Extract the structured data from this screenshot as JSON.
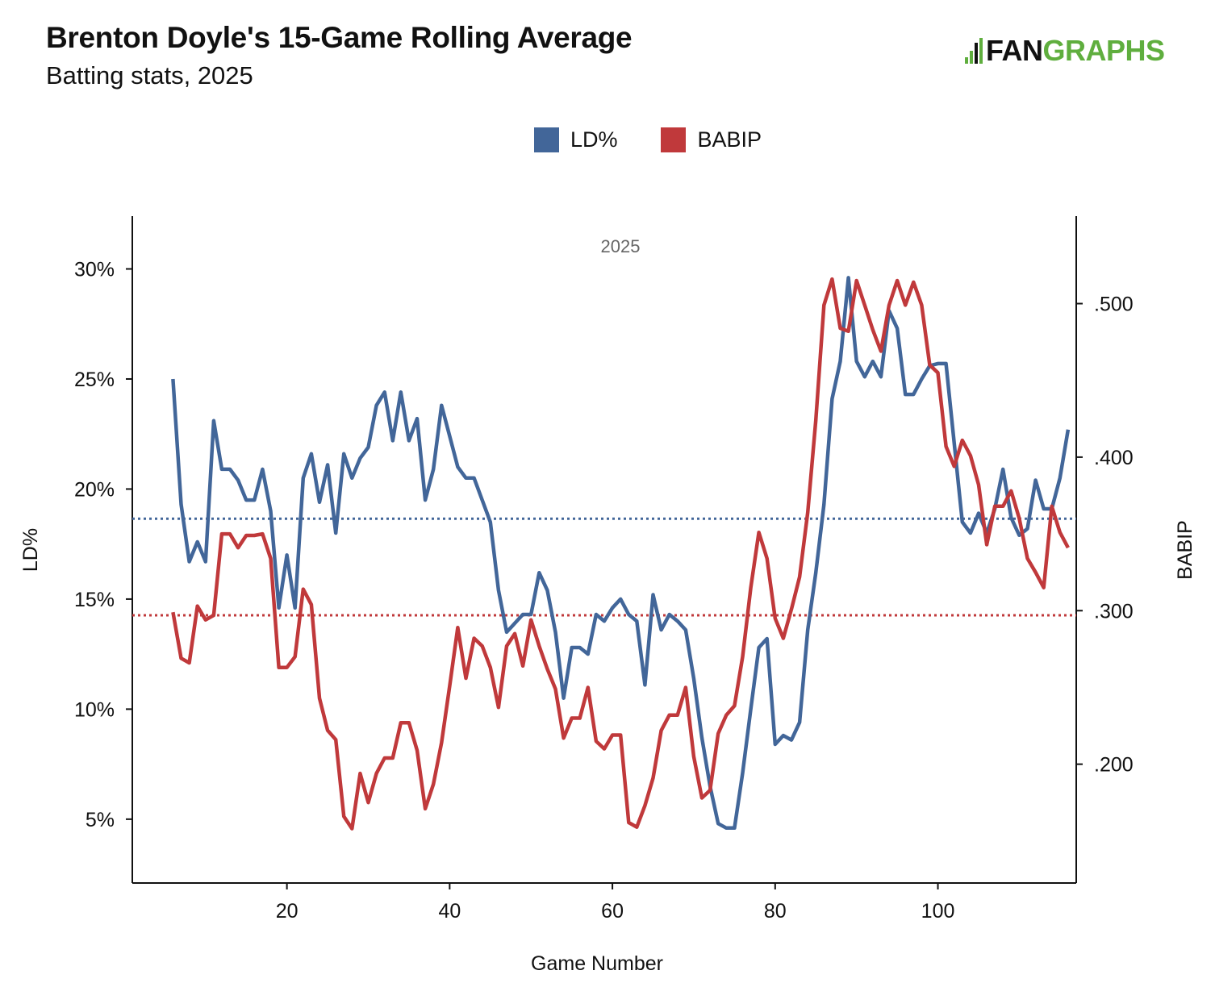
{
  "title": "Brenton Doyle's 15-Game Rolling Average",
  "subtitle": "Batting stats, 2025",
  "logo": {
    "part1": "FAN",
    "part2": "GRAPHS",
    "brand_color": "#5fae3e"
  },
  "chart_data": {
    "type": "line",
    "title": "Brenton Doyle's 15-Game Rolling Average",
    "subtitle": "Batting stats, 2025",
    "panel_label": "2025",
    "xlabel": "Game Number",
    "ylabel_left": "LD%",
    "ylabel_right": "BABIP",
    "xlim": [
      1,
      117
    ],
    "ylim_left": [
      2.1,
      32.4
    ],
    "ylim_right": [
      0.1226,
      0.557
    ],
    "x_ticks": [
      20,
      40,
      60,
      80,
      100
    ],
    "y_ticks_left": [
      {
        "v": 5,
        "label": "5%"
      },
      {
        "v": 10,
        "label": "10%"
      },
      {
        "v": 15,
        "label": "15%"
      },
      {
        "v": 20,
        "label": "20%"
      },
      {
        "v": 25,
        "label": "25%"
      },
      {
        "v": 30,
        "label": "30%"
      }
    ],
    "y_ticks_right": [
      {
        "v": 0.2,
        "label": ".200"
      },
      {
        "v": 0.3,
        "label": ".300"
      },
      {
        "v": 0.4,
        "label": ".400"
      },
      {
        "v": 0.5,
        "label": ".500"
      }
    ],
    "grid": false,
    "legend_position": "top",
    "x_start": 6,
    "series": [
      {
        "name": "LD%",
        "axis": "left",
        "color": "#426699",
        "reference_line": 18.65,
        "values": [
          25.0,
          19.3,
          16.7,
          17.6,
          16.7,
          23.1,
          20.9,
          20.9,
          20.4,
          19.5,
          19.5,
          20.9,
          19.0,
          14.6,
          17.0,
          14.6,
          20.5,
          21.6,
          19.4,
          21.1,
          18.0,
          21.6,
          20.5,
          21.4,
          21.9,
          23.8,
          24.4,
          22.2,
          24.4,
          22.2,
          23.2,
          19.5,
          20.9,
          23.8,
          22.4,
          21.0,
          20.5,
          20.5,
          19.5,
          18.5,
          15.4,
          13.5,
          13.9,
          14.3,
          14.3,
          16.2,
          15.4,
          13.5,
          10.5,
          12.8,
          12.8,
          12.5,
          14.3,
          14.0,
          14.6,
          15.0,
          14.3,
          14.0,
          11.1,
          15.2,
          13.6,
          14.3,
          14.0,
          13.6,
          11.4,
          8.7,
          6.5,
          4.8,
          4.6,
          4.6,
          7.1,
          10.0,
          12.8,
          13.2,
          8.4,
          8.8,
          8.6,
          9.4,
          13.6,
          16.2,
          19.3,
          24.1,
          25.8,
          29.6,
          25.8,
          25.1,
          25.8,
          25.1,
          28.1,
          27.3,
          24.3,
          24.3,
          25.0,
          25.6,
          25.7,
          25.7,
          22.1,
          18.5,
          18.0,
          18.9,
          18.0,
          19.1,
          20.9,
          18.7,
          17.9,
          18.2,
          20.4,
          19.1,
          19.1,
          20.5,
          22.7
        ]
      },
      {
        "name": "BABIP",
        "axis": "right",
        "color": "#c0393b",
        "reference_line": 0.297,
        "values": [
          0.299,
          0.269,
          0.266,
          0.303,
          0.294,
          0.297,
          0.35,
          0.35,
          0.341,
          0.349,
          0.349,
          0.35,
          0.334,
          0.263,
          0.263,
          0.27,
          0.314,
          0.304,
          0.243,
          0.222,
          0.216,
          0.166,
          0.158,
          0.194,
          0.175,
          0.194,
          0.204,
          0.204,
          0.227,
          0.227,
          0.209,
          0.171,
          0.187,
          0.214,
          0.251,
          0.289,
          0.256,
          0.282,
          0.277,
          0.263,
          0.237,
          0.277,
          0.285,
          0.264,
          0.294,
          0.277,
          0.262,
          0.249,
          0.217,
          0.23,
          0.23,
          0.25,
          0.215,
          0.21,
          0.219,
          0.219,
          0.162,
          0.159,
          0.173,
          0.191,
          0.222,
          0.232,
          0.232,
          0.25,
          0.205,
          0.178,
          0.183,
          0.22,
          0.232,
          0.238,
          0.27,
          0.315,
          0.351,
          0.334,
          0.295,
          0.282,
          0.301,
          0.322,
          0.364,
          0.424,
          0.499,
          0.516,
          0.484,
          0.482,
          0.515,
          0.499,
          0.483,
          0.469,
          0.499,
          0.515,
          0.499,
          0.514,
          0.499,
          0.46,
          0.455,
          0.407,
          0.394,
          0.411,
          0.401,
          0.382,
          0.343,
          0.368,
          0.368,
          0.378,
          0.36,
          0.334,
          0.325,
          0.315,
          0.368,
          0.351,
          0.341
        ]
      }
    ]
  }
}
